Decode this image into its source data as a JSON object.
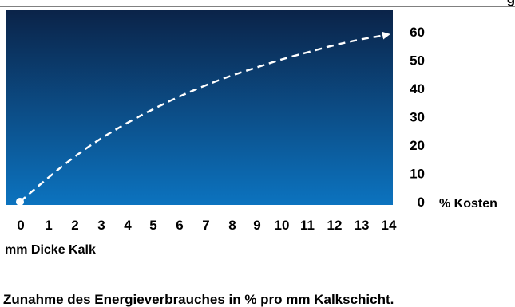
{
  "chart_data": {
    "type": "line",
    "x": [
      0,
      1,
      2,
      3,
      4,
      5,
      6,
      7,
      8,
      9,
      10,
      11,
      12,
      13,
      14
    ],
    "series": [
      {
        "values": [
          0,
          8,
          15.5,
          22,
          27.5,
          32.5,
          37,
          41,
          44.5,
          47.5,
          50.5,
          53,
          55.5,
          57.5,
          59
        ]
      }
    ],
    "x_ticks": [
      "0",
      "1",
      "2",
      "3",
      "4",
      "5",
      "6",
      "7",
      "8",
      "9",
      "10",
      "11",
      "12",
      "13",
      "14"
    ],
    "y_ticks": [
      "0",
      "10",
      "20",
      "30",
      "40",
      "50",
      "60"
    ],
    "xlabel": "mm Dicke Kalk",
    "ylabel": "% Kosten",
    "caption": "Zunahme des Energieverbrauches in % pro mm Kalkschicht.",
    "partial_top_text": "g",
    "xlim": [
      0,
      14
    ],
    "ylim": [
      0,
      60
    ],
    "grid": false,
    "line_style": "dashed",
    "line_color": "#ffffff",
    "start_marker_color": "#ffffff",
    "background_gradient": [
      "#0b2348",
      "#0c73bf"
    ]
  }
}
